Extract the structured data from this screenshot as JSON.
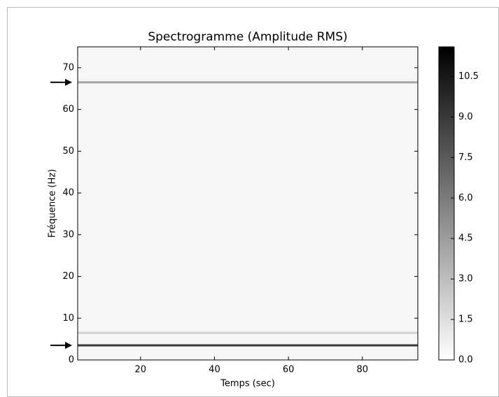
{
  "chart_data": {
    "type": "spectrogram",
    "title": "Spectrogramme (Amplitude RMS)",
    "xlabel": "Temps (sec)",
    "ylabel": "Fréquence (Hz)",
    "xlim": [
      3,
      95
    ],
    "ylim": [
      0,
      75
    ],
    "xticks": [
      20,
      40,
      60,
      80
    ],
    "yticks": [
      0,
      10,
      20,
      30,
      40,
      50,
      60,
      70
    ],
    "colormap": "gray_r",
    "clim": [
      0,
      11.6
    ],
    "cticks": [
      {
        "value": 0,
        "label": "0.0"
      },
      1.5,
      {
        "value": 3,
        "label": "3.0"
      },
      4.5,
      {
        "value": 6,
        "label": "6.0"
      },
      7.5,
      {
        "value": 9,
        "label": "9.0"
      },
      10.5
    ],
    "background_amplitude": 0.4,
    "bands": [
      {
        "frequency": 3.5,
        "amplitude": 9,
        "marked": true
      },
      {
        "frequency": 6.5,
        "amplitude": 2,
        "marked": false
      },
      {
        "frequency": 66.5,
        "amplitude": 4,
        "marked": true
      }
    ]
  }
}
